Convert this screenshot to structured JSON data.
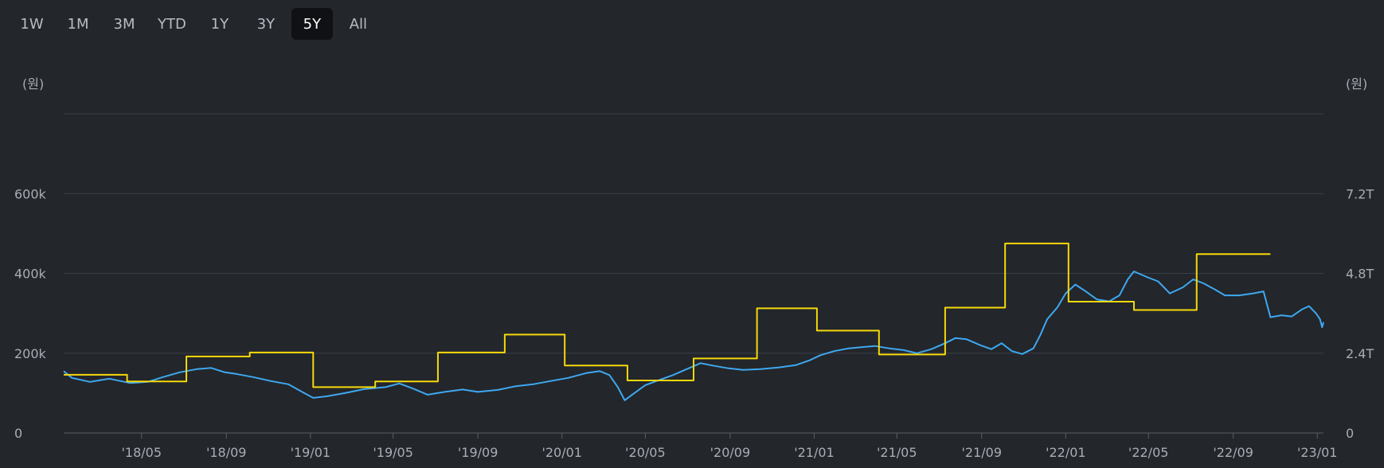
{
  "range_tabs": [
    {
      "label": "1W",
      "active": false
    },
    {
      "label": "1M",
      "active": false
    },
    {
      "label": "3M",
      "active": false
    },
    {
      "label": "YTD",
      "active": false
    },
    {
      "label": "1Y",
      "active": false
    },
    {
      "label": "3Y",
      "active": false
    },
    {
      "label": "5Y",
      "active": true
    },
    {
      "label": "All",
      "active": false
    }
  ],
  "colors": {
    "background": "#23262b",
    "price_line": "#3ea8f0",
    "step_line": "#f5d90a",
    "grid": "#3b3f46"
  },
  "chart_data": {
    "type": "line",
    "left_unit": "(원)",
    "right_unit": "(원)",
    "left_axis": {
      "ticks": [
        0,
        200000,
        400000,
        600000
      ],
      "tick_labels": [
        "0",
        "200k",
        "400k",
        "600k"
      ],
      "max": 800000
    },
    "right_axis": {
      "ticks": [
        0,
        2.4,
        4.8,
        7.2
      ],
      "tick_labels": [
        "0",
        "2.4T",
        "4.8T",
        "7.2T"
      ],
      "max": 9.6
    },
    "x_range": [
      "2018-01-08",
      "2023-01-10"
    ],
    "x_ticks": [
      {
        "date": "2018-05-01",
        "label": "'18/05"
      },
      {
        "date": "2018-09-01",
        "label": "'18/09"
      },
      {
        "date": "2019-01-01",
        "label": "'19/01"
      },
      {
        "date": "2019-05-01",
        "label": "'19/05"
      },
      {
        "date": "2019-09-01",
        "label": "'19/09"
      },
      {
        "date": "2020-01-01",
        "label": "'20/01"
      },
      {
        "date": "2020-05-01",
        "label": "'20/05"
      },
      {
        "date": "2020-09-01",
        "label": "'20/09"
      },
      {
        "date": "2021-01-01",
        "label": "'21/01"
      },
      {
        "date": "2021-05-01",
        "label": "'21/05"
      },
      {
        "date": "2021-09-01",
        "label": "'21/09"
      },
      {
        "date": "2022-01-01",
        "label": "'22/01"
      },
      {
        "date": "2022-05-01",
        "label": "'22/05"
      },
      {
        "date": "2022-09-01",
        "label": "'22/09"
      },
      {
        "date": "2023-01-01",
        "label": "'23/01"
      }
    ],
    "grid": true,
    "series": [
      {
        "axis": "left",
        "color": "#3ea8f0",
        "points": [
          [
            "2018-01-08",
            155000
          ],
          [
            "2018-01-20",
            138000
          ],
          [
            "2018-02-15",
            128000
          ],
          [
            "2018-03-15",
            136000
          ],
          [
            "2018-04-15",
            125000
          ],
          [
            "2018-05-10",
            128000
          ],
          [
            "2018-06-01",
            140000
          ],
          [
            "2018-06-25",
            152000
          ],
          [
            "2018-07-20",
            160000
          ],
          [
            "2018-08-10",
            163000
          ],
          [
            "2018-08-30",
            152000
          ],
          [
            "2018-09-15",
            148000
          ],
          [
            "2018-10-10",
            140000
          ],
          [
            "2018-11-05",
            130000
          ],
          [
            "2018-11-30",
            122000
          ],
          [
            "2018-12-20",
            103000
          ],
          [
            "2019-01-05",
            88000
          ],
          [
            "2019-01-25",
            92000
          ],
          [
            "2019-02-20",
            100000
          ],
          [
            "2019-03-20",
            110000
          ],
          [
            "2019-04-20",
            115000
          ],
          [
            "2019-05-10",
            124000
          ],
          [
            "2019-06-01",
            110000
          ],
          [
            "2019-06-20",
            96000
          ],
          [
            "2019-07-15",
            103000
          ],
          [
            "2019-08-10",
            109000
          ],
          [
            "2019-09-01",
            103000
          ],
          [
            "2019-09-30",
            108000
          ],
          [
            "2019-10-25",
            117000
          ],
          [
            "2019-11-20",
            122000
          ],
          [
            "2019-12-15",
            130000
          ],
          [
            "2020-01-10",
            138000
          ],
          [
            "2020-02-05",
            150000
          ],
          [
            "2020-02-25",
            155000
          ],
          [
            "2020-03-10",
            145000
          ],
          [
            "2020-03-22",
            115000
          ],
          [
            "2020-04-01",
            82000
          ],
          [
            "2020-04-15",
            100000
          ],
          [
            "2020-05-01",
            120000
          ],
          [
            "2020-05-20",
            132000
          ],
          [
            "2020-06-10",
            145000
          ],
          [
            "2020-06-30",
            160000
          ],
          [
            "2020-07-20",
            175000
          ],
          [
            "2020-08-10",
            168000
          ],
          [
            "2020-08-30",
            162000
          ],
          [
            "2020-09-20",
            158000
          ],
          [
            "2020-10-15",
            160000
          ],
          [
            "2020-11-10",
            164000
          ],
          [
            "2020-12-05",
            170000
          ],
          [
            "2020-12-25",
            182000
          ],
          [
            "2021-01-10",
            195000
          ],
          [
            "2021-01-30",
            205000
          ],
          [
            "2021-02-20",
            212000
          ],
          [
            "2021-03-10",
            215000
          ],
          [
            "2021-03-30",
            218000
          ],
          [
            "2021-04-20",
            212000
          ],
          [
            "2021-05-10",
            208000
          ],
          [
            "2021-05-30",
            200000
          ],
          [
            "2021-06-20",
            210000
          ],
          [
            "2021-07-10",
            225000
          ],
          [
            "2021-07-25",
            238000
          ],
          [
            "2021-08-10",
            235000
          ],
          [
            "2021-08-30",
            220000
          ],
          [
            "2021-09-15",
            210000
          ],
          [
            "2021-09-30",
            225000
          ],
          [
            "2021-10-15",
            205000
          ],
          [
            "2021-10-30",
            198000
          ],
          [
            "2021-11-15",
            212000
          ],
          [
            "2021-11-25",
            245000
          ],
          [
            "2021-12-05",
            285000
          ],
          [
            "2021-12-20",
            315000
          ],
          [
            "2022-01-01",
            350000
          ],
          [
            "2022-01-15",
            372000
          ],
          [
            "2022-01-30",
            355000
          ],
          [
            "2022-02-15",
            335000
          ],
          [
            "2022-03-05",
            330000
          ],
          [
            "2022-03-20",
            345000
          ],
          [
            "2022-04-01",
            385000
          ],
          [
            "2022-04-10",
            405000
          ],
          [
            "2022-04-30",
            390000
          ],
          [
            "2022-05-15",
            380000
          ],
          [
            "2022-06-01",
            350000
          ],
          [
            "2022-06-20",
            365000
          ],
          [
            "2022-07-05",
            385000
          ],
          [
            "2022-07-20",
            375000
          ],
          [
            "2022-08-05",
            360000
          ],
          [
            "2022-08-20",
            345000
          ],
          [
            "2022-09-10",
            345000
          ],
          [
            "2022-09-30",
            350000
          ],
          [
            "2022-10-15",
            355000
          ],
          [
            "2022-10-25",
            290000
          ],
          [
            "2022-11-10",
            295000
          ],
          [
            "2022-11-25",
            292000
          ],
          [
            "2022-12-10",
            310000
          ],
          [
            "2022-12-20",
            318000
          ],
          [
            "2022-12-30",
            300000
          ],
          [
            "2023-01-05",
            285000
          ],
          [
            "2023-01-08",
            265000
          ],
          [
            "2023-01-10",
            278000
          ]
        ]
      },
      {
        "axis": "right",
        "color": "#f5d90a",
        "shape": "step",
        "points": [
          [
            "2018-01-08",
            1.75
          ],
          [
            "2018-04-10",
            1.55
          ],
          [
            "2018-07-05",
            2.3
          ],
          [
            "2018-10-05",
            2.42
          ],
          [
            "2019-01-05",
            1.38
          ],
          [
            "2019-04-05",
            1.55
          ],
          [
            "2019-07-05",
            2.42
          ],
          [
            "2019-10-10",
            2.96
          ],
          [
            "2020-01-05",
            2.03
          ],
          [
            "2020-04-05",
            1.58
          ],
          [
            "2020-07-10",
            2.24
          ],
          [
            "2020-10-10",
            3.75
          ],
          [
            "2021-01-05",
            3.08
          ],
          [
            "2021-04-05",
            2.36
          ],
          [
            "2021-07-10",
            3.77
          ],
          [
            "2021-10-05",
            5.7
          ],
          [
            "2022-01-05",
            3.95
          ],
          [
            "2022-04-10",
            3.7
          ],
          [
            "2022-07-10",
            5.38
          ],
          [
            "2022-10-25",
            5.38
          ]
        ]
      }
    ]
  }
}
